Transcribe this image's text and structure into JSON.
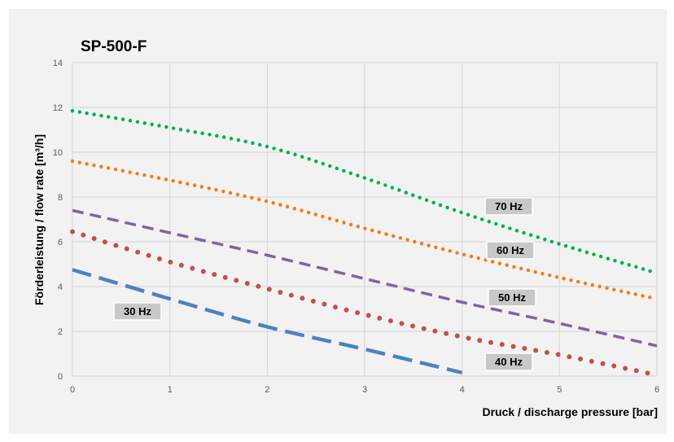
{
  "chart_data": {
    "type": "line",
    "title": "SP-500-F",
    "xlabel": "Druck / discharge pressure [bar]",
    "ylabel": "Förderleistung  / flow rate [m³/h]",
    "xlim": [
      0,
      6
    ],
    "ylim": [
      0,
      14
    ],
    "xticks": [
      0,
      1,
      2,
      3,
      4,
      5,
      6
    ],
    "yticks": [
      0,
      2,
      4,
      6,
      8,
      10,
      12,
      14
    ],
    "grid": true,
    "series": [
      {
        "name": "70 Hz",
        "style": "dotted",
        "color": "#00b050",
        "x": [
          0,
          1,
          2,
          3,
          4,
          5,
          6
        ],
        "y": [
          11.85,
          11.1,
          10.25,
          8.85,
          7.3,
          5.9,
          4.6
        ]
      },
      {
        "name": "60 Hz",
        "style": "dotted",
        "color": "#f07d1c",
        "x": [
          0,
          1,
          2,
          3,
          4,
          5,
          6
        ],
        "y": [
          9.6,
          8.75,
          7.8,
          6.6,
          5.45,
          4.4,
          3.45
        ]
      },
      {
        "name": "50 Hz",
        "style": "dashed",
        "color": "#8064a2",
        "x": [
          0,
          1,
          2,
          3,
          4,
          5,
          6
        ],
        "y": [
          7.4,
          6.4,
          5.4,
          4.35,
          3.3,
          2.35,
          1.35
        ]
      },
      {
        "name": "40 Hz",
        "style": "round-dotted",
        "color": "#c0504d",
        "x": [
          0,
          1,
          2,
          3,
          4,
          5,
          6
        ],
        "y": [
          6.45,
          5.1,
          3.9,
          2.75,
          1.75,
          0.95,
          0.05
        ]
      },
      {
        "name": "30 Hz",
        "style": "long-dashed",
        "color": "#4f81bd",
        "x": [
          0,
          1,
          2,
          3,
          4
        ],
        "y": [
          4.75,
          3.45,
          2.2,
          1.2,
          0.15
        ]
      }
    ],
    "annotations": [
      {
        "text": "70 Hz",
        "series": "70 Hz"
      },
      {
        "text": "60 Hz",
        "series": "60 Hz"
      },
      {
        "text": "50 Hz",
        "series": "50 Hz"
      },
      {
        "text": "40 Hz",
        "series": "40 Hz"
      },
      {
        "text": "30 Hz",
        "series": "30 Hz"
      }
    ],
    "colors": {
      "background": "#f2f2f2",
      "grid": "#d9d9d9",
      "label_box": "#c8c8c8"
    }
  }
}
